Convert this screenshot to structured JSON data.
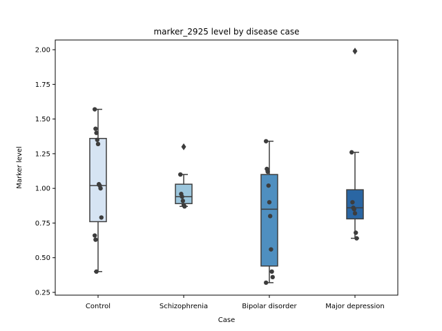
{
  "chart_data": {
    "type": "box",
    "title": "marker_2925 level by disease case",
    "xlabel": "Case",
    "ylabel": "Marker level",
    "ylim": [
      0.23,
      2.07
    ],
    "yticks": [
      "0.25",
      "0.50",
      "0.75",
      "1.00",
      "1.25",
      "1.50",
      "1.75",
      "2.00"
    ],
    "grid": false,
    "legend": "none",
    "categories": [
      "Control",
      "Schizophrenia",
      "Bipolar disorder",
      "Major depression"
    ],
    "colors": [
      "#d6e4f3",
      "#9cc6dd",
      "#4f8fc0",
      "#2a66a3"
    ],
    "boxes": [
      {
        "q1": 0.76,
        "median": 1.02,
        "q3": 1.36,
        "whisker_low": 0.4,
        "whisker_high": 1.57,
        "outliers": []
      },
      {
        "q1": 0.89,
        "median": 0.94,
        "q3": 1.03,
        "whisker_low": 0.87,
        "whisker_high": 1.1,
        "outliers": [
          1.3
        ]
      },
      {
        "q1": 0.44,
        "median": 0.85,
        "q3": 1.1,
        "whisker_low": 0.32,
        "whisker_high": 1.34,
        "outliers": []
      },
      {
        "q1": 0.78,
        "median": 0.86,
        "q3": 0.99,
        "whisker_low": 0.64,
        "whisker_high": 1.26,
        "outliers": [
          1.99
        ]
      }
    ],
    "points": [
      [
        1.57,
        1.43,
        1.4,
        1.35,
        1.32,
        1.03,
        1.02,
        1.0,
        0.79,
        0.66,
        0.63,
        0.4
      ],
      [
        1.1,
        0.96,
        0.94,
        0.91,
        0.88,
        0.87
      ],
      [
        1.34,
        1.14,
        1.12,
        1.02,
        0.9,
        0.8,
        0.56,
        0.4,
        0.36,
        0.32
      ],
      [
        1.26,
        0.9,
        0.86,
        0.85,
        0.82,
        0.68,
        0.64
      ]
    ]
  }
}
